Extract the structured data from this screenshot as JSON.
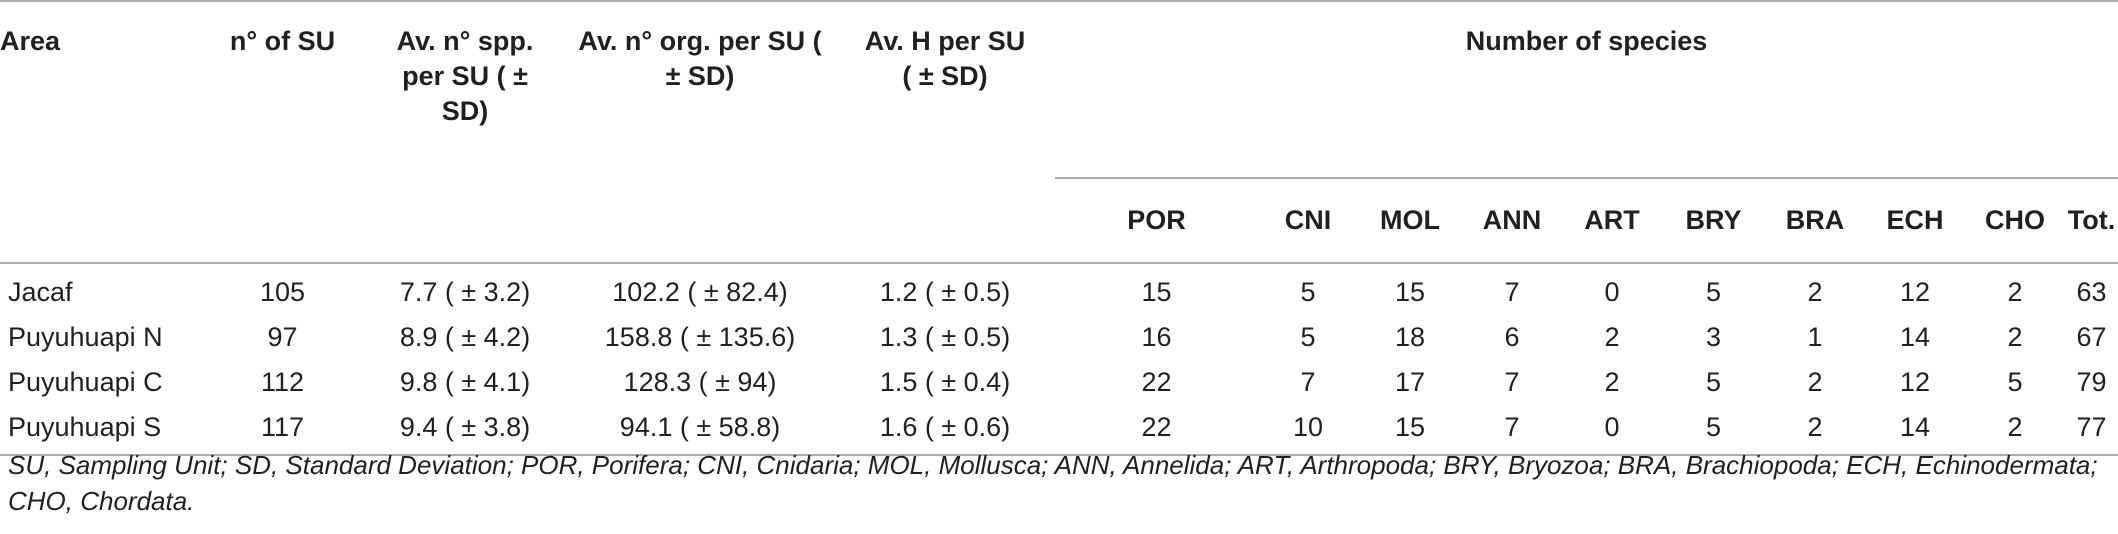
{
  "table": {
    "headers": {
      "area": "Area",
      "n_su": "n° of SU",
      "av_spp": "Av. n° spp. per SU ( ± SD)",
      "av_org": "Av. n° org. per SU ( ± SD)",
      "av_h": "Av. H per SU ( ± SD)",
      "species_group": "Number of species",
      "species_cols": [
        "POR",
        "CNI",
        "MOL",
        "ANN",
        "ART",
        "BRY",
        "BRA",
        "ECH",
        "CHO",
        "Tot."
      ]
    },
    "rows": [
      {
        "area": "Jacaf",
        "n_su": "105",
        "av_spp": "7.7 ( ± 3.2)",
        "av_org": "102.2 ( ± 82.4)",
        "av_h": "1.2 ( ± 0.5)",
        "species": [
          "15",
          "5",
          "15",
          "7",
          "0",
          "5",
          "2",
          "12",
          "2",
          "63"
        ]
      },
      {
        "area": "Puyuhuapi N",
        "n_su": "97",
        "av_spp": "8.9 ( ± 4.2)",
        "av_org": "158.8 ( ± 135.6)",
        "av_h": "1.3 ( ± 0.5)",
        "species": [
          "16",
          "5",
          "18",
          "6",
          "2",
          "3",
          "1",
          "14",
          "2",
          "67"
        ]
      },
      {
        "area": "Puyuhuapi C",
        "n_su": "112",
        "av_spp": "9.8 ( ± 4.1)",
        "av_org": "128.3 ( ± 94)",
        "av_h": "1.5 ( ± 0.4)",
        "species": [
          "22",
          "7",
          "17",
          "7",
          "2",
          "5",
          "2",
          "12",
          "5",
          "79"
        ]
      },
      {
        "area": "Puyuhuapi S",
        "n_su": "117",
        "av_spp": "9.4 ( ± 3.8)",
        "av_org": "94.1 ( ± 58.8)",
        "av_h": "1.6 ( ± 0.6)",
        "species": [
          "22",
          "10",
          "15",
          "7",
          "0",
          "5",
          "2",
          "14",
          "2",
          "77"
        ]
      }
    ],
    "footnote": "SU, Sampling Unit; SD, Standard Deviation; POR, Porifera; CNI, Cnidaria; MOL, Mollusca; ANN, Annelida; ART, Arthropoda; BRY, Bryozoa; BRA, Brachiopoda; ECH, Echinodermata; CHO, Chordata."
  }
}
